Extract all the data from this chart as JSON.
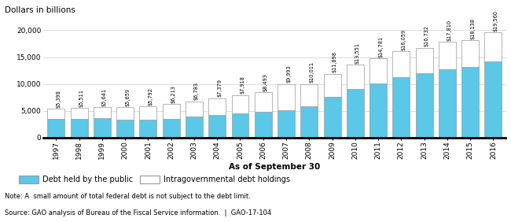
{
  "years": [
    1997,
    1998,
    1999,
    2000,
    2001,
    2002,
    2003,
    2004,
    2005,
    2006,
    2007,
    2008,
    2009,
    2010,
    2011,
    2012,
    2013,
    2014,
    2015,
    2016
  ],
  "total": [
    5398,
    5511,
    5641,
    5659,
    5792,
    6213,
    6783,
    7379,
    7918,
    8493,
    9993,
    10011,
    11898,
    13551,
    14781,
    16059,
    16732,
    17810,
    18138,
    19560
  ],
  "public": [
    3457,
    3457,
    3633,
    3410,
    3320,
    3540,
    3913,
    4296,
    4592,
    4829,
    5035,
    5803,
    7552,
    9023,
    10128,
    11281,
    11982,
    12779,
    13117,
    14168
  ],
  "labels": [
    "$5,398",
    "$5,511",
    "$5,641",
    "$5,659",
    "$5,792",
    "$6,213",
    "$6,783",
    "$7,379",
    "$7,918",
    "$8,493",
    "$9,993",
    "$10,011",
    "$11,898",
    "$13,551",
    "$14,781",
    "$16,059",
    "$16,732",
    "$17,810",
    "$18,138",
    "$19,560"
  ],
  "public_color": "#5bc8e8",
  "intra_color": "#ffffff",
  "bar_edge_color": "#999999",
  "ylim": [
    0,
    21500
  ],
  "yticks": [
    0,
    5000,
    10000,
    15000,
    20000
  ],
  "ytick_labels": [
    "0",
    "5,000",
    "10,000",
    "15,000",
    "20,000"
  ],
  "top_label": "Dollars in billions",
  "xlabel_bold": "As of September 30",
  "legend_public": "Debt held by the public",
  "legend_intra": "Intragovernmental debt holdings",
  "note": "Note: A  small amount of total federal debt is not subject to the debt limit.",
  "source": "Source: GAO analysis of Bureau of the Fiscal Service information.  |  GAO-17-104",
  "bar_label_fontsize": 4.8,
  "tick_fontsize": 6.5,
  "ytick_fontsize": 6.5
}
